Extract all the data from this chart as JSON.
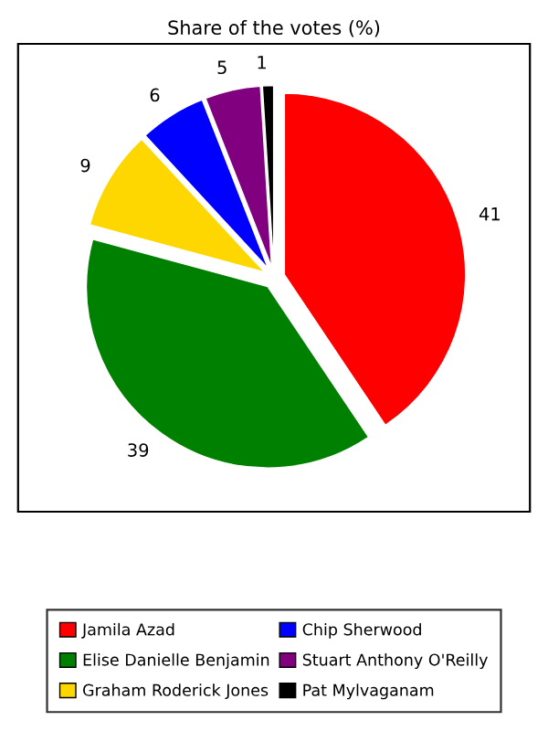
{
  "chart_data": {
    "type": "pie",
    "title": "Share of the votes (%)",
    "categories": [
      "Jamila Azad",
      "Elise Danielle Benjamin",
      "Graham Roderick Jones",
      "Chip Sherwood",
      "Stuart Anthony O'Reilly",
      "Pat Mylvaganam"
    ],
    "values": [
      41,
      39,
      9,
      6,
      5,
      1
    ],
    "colors": [
      "#ff0000",
      "#008000",
      "#ffd700",
      "#0000ff",
      "#800080",
      "#000000"
    ],
    "data_labels": true,
    "legend": "bottom"
  }
}
